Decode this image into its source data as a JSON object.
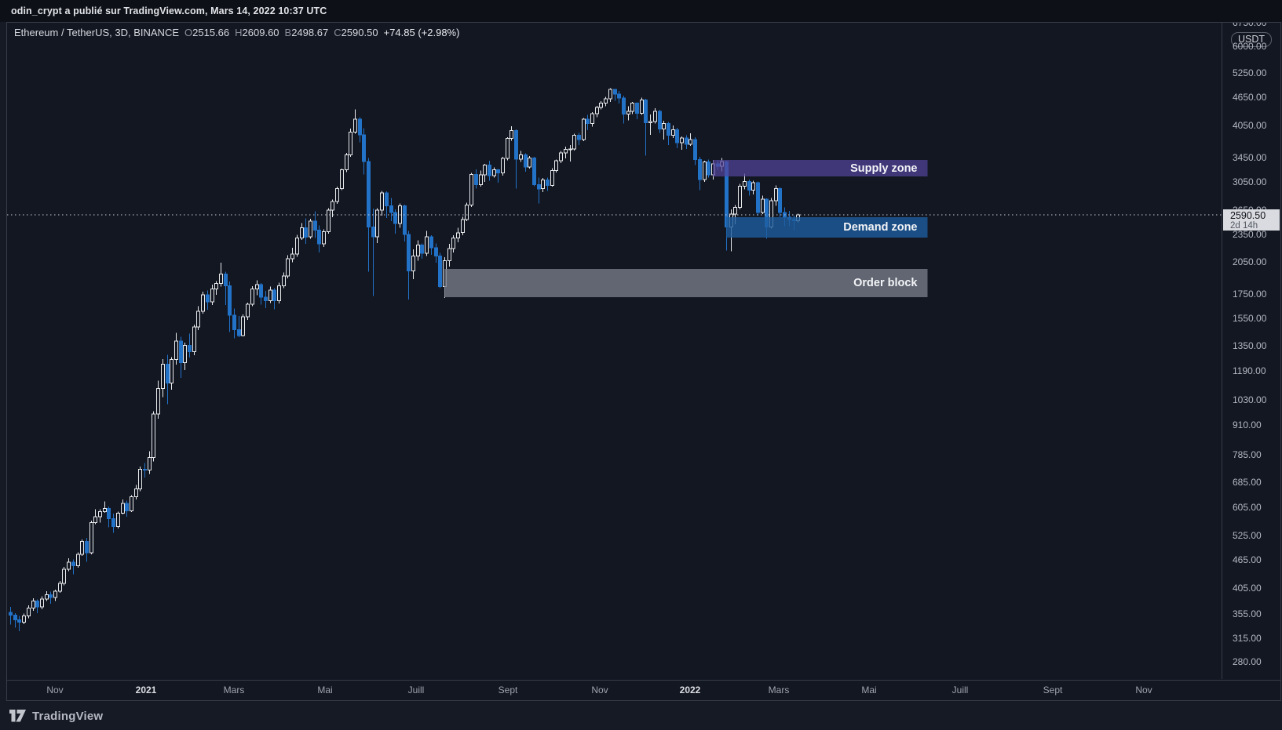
{
  "publish_bar": {
    "text": "odin_crypt a publié sur TradingView.com, Mars 14, 2022 10:37 UTC"
  },
  "legend": {
    "title": "Ethereum / TetherUS, 3D, BINANCE",
    "ohlc": [
      {
        "k": "O",
        "v": "2515.66"
      },
      {
        "k": "H",
        "v": "2609.60"
      },
      {
        "k": "B",
        "v": "2498.67"
      },
      {
        "k": "C",
        "v": "2590.50"
      }
    ],
    "change": "+74.85 (+2.98%)"
  },
  "axis": {
    "currency": "USDT",
    "last_price": "2590.50",
    "countdown": "2d 14h",
    "price_ticks": [
      6750,
      6000,
      5250,
      4650,
      4050,
      3450,
      3050,
      2650,
      2350,
      2050,
      1750,
      1550,
      1350,
      1190,
      1030,
      910,
      785,
      685,
      605,
      525,
      465,
      405,
      355,
      315,
      280
    ],
    "time_ticks": [
      {
        "label": "Nov",
        "index": 10
      },
      {
        "label": "2021",
        "index": 30.3,
        "major": true
      },
      {
        "label": "Mars",
        "index": 50
      },
      {
        "label": "Mai",
        "index": 70.3
      },
      {
        "label": "Juill",
        "index": 90.7
      },
      {
        "label": "Sept",
        "index": 111.3
      },
      {
        "label": "Nov",
        "index": 131.7
      },
      {
        "label": "2022",
        "index": 152,
        "major": true
      },
      {
        "label": "Mars",
        "index": 171.7
      },
      {
        "label": "Mai",
        "index": 192
      },
      {
        "label": "Juill",
        "index": 212.3
      },
      {
        "label": "Sept",
        "index": 233
      },
      {
        "label": "Nov",
        "index": 253.3
      }
    ]
  },
  "footer": {
    "brand": "TradingView"
  },
  "chart_data": {
    "type": "candlestick",
    "title": "Ethereum / TetherUS, 3D, BINANCE",
    "interval": "3D",
    "price_scale": "log",
    "grid": false,
    "current_price": 2590.5,
    "ylim": [
      270,
      7000
    ],
    "colors": {
      "bg": "#131722",
      "up": "#e8eaec",
      "down": "#2272c8",
      "dotted_line": "#c9ccd4"
    },
    "zones": [
      {
        "name": "Supply zone",
        "price_top": 3405,
        "price_bottom": 3140,
        "start_index": 157,
        "end_index": 205,
        "color": "#52449b",
        "opacity": 0.72
      },
      {
        "name": "Demand zone",
        "price_top": 2563,
        "price_bottom": 2315,
        "start_index": 160,
        "end_index": 205,
        "color": "#1e5c9e",
        "opacity": 0.8
      },
      {
        "name": "Order block",
        "price_top": 1980,
        "price_bottom": 1720,
        "start_index": 97,
        "end_index": 205,
        "color": "#757a87",
        "opacity": 0.8
      }
    ],
    "candles": [
      [
        358,
        368,
        337,
        353
      ],
      [
        353,
        357,
        332,
        345
      ],
      [
        345,
        352,
        326,
        341
      ],
      [
        341,
        356,
        338,
        352
      ],
      [
        352,
        371,
        348,
        366
      ],
      [
        366,
        384,
        361,
        379
      ],
      [
        379,
        382,
        357,
        368
      ],
      [
        368,
        388,
        364,
        383
      ],
      [
        383,
        398,
        379,
        391
      ],
      [
        391,
        397,
        374,
        386
      ],
      [
        386,
        401,
        379,
        398
      ],
      [
        398,
        419,
        395,
        414
      ],
      [
        414,
        449,
        410,
        444
      ],
      [
        444,
        469,
        440,
        460
      ],
      [
        460,
        466,
        433,
        452
      ],
      [
        452,
        483,
        447,
        478
      ],
      [
        478,
        515,
        474,
        510
      ],
      [
        510,
        519,
        461,
        482
      ],
      [
        482,
        566,
        478,
        560
      ],
      [
        560,
        599,
        556,
        577
      ],
      [
        577,
        599,
        560,
        592
      ],
      [
        592,
        622,
        588,
        601
      ],
      [
        601,
        607,
        547,
        571
      ],
      [
        571,
        586,
        532,
        549
      ],
      [
        549,
        592,
        544,
        587
      ],
      [
        587,
        629,
        583,
        616
      ],
      [
        616,
        625,
        577,
        594
      ],
      [
        594,
        642,
        590,
        637
      ],
      [
        637,
        676,
        628,
        662
      ],
      [
        662,
        740,
        655,
        730
      ],
      [
        730,
        754,
        701,
        728
      ],
      [
        728,
        799,
        714,
        775
      ],
      [
        775,
        975,
        760,
        962
      ],
      [
        962,
        1135,
        940,
        1092
      ],
      [
        1092,
        1263,
        1045,
        1232
      ],
      [
        1232,
        1292,
        1010,
        1122
      ],
      [
        1122,
        1276,
        1086,
        1262
      ],
      [
        1262,
        1440,
        1230,
        1382
      ],
      [
        1382,
        1412,
        1150,
        1242
      ],
      [
        1242,
        1372,
        1196,
        1352
      ],
      [
        1352,
        1436,
        1275,
        1312
      ],
      [
        1312,
        1502,
        1290,
        1482
      ],
      [
        1482,
        1645,
        1460,
        1605
      ],
      [
        1605,
        1768,
        1585,
        1742
      ],
      [
        1742,
        1780,
        1615,
        1682
      ],
      [
        1682,
        1830,
        1656,
        1792
      ],
      [
        1792,
        1865,
        1740,
        1842
      ],
      [
        1842,
        2042,
        1812,
        1932
      ],
      [
        1932,
        1955,
        1655,
        1822
      ],
      [
        1822,
        1860,
        1446,
        1572
      ],
      [
        1572,
        1625,
        1402,
        1462
      ],
      [
        1462,
        1566,
        1410,
        1422
      ],
      [
        1422,
        1578,
        1415,
        1562
      ],
      [
        1562,
        1674,
        1535,
        1662
      ],
      [
        1662,
        1818,
        1645,
        1792
      ],
      [
        1792,
        1872,
        1736,
        1832
      ],
      [
        1832,
        1845,
        1658,
        1722
      ],
      [
        1722,
        1775,
        1630,
        1692
      ],
      [
        1692,
        1814,
        1670,
        1782
      ],
      [
        1782,
        1800,
        1620,
        1692
      ],
      [
        1692,
        1848,
        1668,
        1822
      ],
      [
        1822,
        1947,
        1800,
        1912
      ],
      [
        1912,
        2122,
        1890,
        2082
      ],
      [
        2082,
        2200,
        2048,
        2132
      ],
      [
        2132,
        2346,
        2105,
        2312
      ],
      [
        2312,
        2488,
        2290,
        2432
      ],
      [
        2432,
        2545,
        2245,
        2322
      ],
      [
        2322,
        2542,
        2302,
        2512
      ],
      [
        2512,
        2640,
        2310,
        2402
      ],
      [
        2402,
        2460,
        2150,
        2242
      ],
      [
        2242,
        2410,
        2210,
        2382
      ],
      [
        2382,
        2680,
        2362,
        2652
      ],
      [
        2652,
        2800,
        2560,
        2772
      ],
      [
        2772,
        2985,
        2740,
        2952
      ],
      [
        2952,
        3265,
        2930,
        3242
      ],
      [
        3242,
        3530,
        3210,
        3492
      ],
      [
        3492,
        3985,
        3460,
        3912
      ],
      [
        3912,
        4380,
        3880,
        4172
      ],
      [
        4172,
        4215,
        3720,
        3862
      ],
      [
        3862,
        3990,
        3170,
        3382
      ],
      [
        3382,
        3440,
        1952,
        2442
      ],
      [
        2442,
        2675,
        1732,
        2322
      ],
      [
        2322,
        2680,
        2252,
        2652
      ],
      [
        2652,
        2920,
        2582,
        2892
      ],
      [
        2892,
        2912,
        2552,
        2712
      ],
      [
        2712,
        2820,
        2512,
        2622
      ],
      [
        2622,
        2665,
        2362,
        2482
      ],
      [
        2482,
        2745,
        2432,
        2712
      ],
      [
        2712,
        2730,
        2272,
        2352
      ],
      [
        2352,
        2392,
        1702,
        1962
      ],
      [
        1962,
        2185,
        1882,
        2112
      ],
      [
        2112,
        2282,
        2062,
        2232
      ],
      [
        2232,
        2250,
        2082,
        2142
      ],
      [
        2142,
        2395,
        2112,
        2322
      ],
      [
        2322,
        2342,
        2126,
        2202
      ],
      [
        2202,
        2248,
        2042,
        2112
      ],
      [
        2112,
        2145,
        1800,
        1812
      ],
      [
        1812,
        2098,
        1714,
        2062
      ],
      [
        2062,
        2245,
        2002,
        2192
      ],
      [
        2192,
        2342,
        2150,
        2312
      ],
      [
        2312,
        2432,
        2262,
        2372
      ],
      [
        2372,
        2566,
        2342,
        2532
      ],
      [
        2532,
        2752,
        2512,
        2722
      ],
      [
        2722,
        3192,
        2695,
        3172
      ],
      [
        3172,
        3248,
        2952,
        3012
      ],
      [
        3012,
        3232,
        2982,
        3162
      ],
      [
        3162,
        3342,
        3052,
        3322
      ],
      [
        3322,
        3392,
        3072,
        3152
      ],
      [
        3152,
        3282,
        3122,
        3242
      ],
      [
        3242,
        3260,
        3042,
        3192
      ],
      [
        3192,
        3462,
        3152,
        3432
      ],
      [
        3432,
        3812,
        3402,
        3792
      ],
      [
        3792,
        4032,
        3752,
        3942
      ],
      [
        3942,
        3970,
        2952,
        3422
      ],
      [
        3422,
        3562,
        3372,
        3492
      ],
      [
        3492,
        3522,
        3212,
        3292
      ],
      [
        3292,
        3472,
        3262,
        3442
      ],
      [
        3442,
        3460,
        2992,
        3012
      ],
      [
        3012,
        3122,
        2742,
        2952
      ],
      [
        2952,
        3112,
        2902,
        3082
      ],
      [
        3082,
        3120,
        2922,
        3002
      ],
      [
        3002,
        3272,
        2982,
        3232
      ],
      [
        3232,
        3415,
        3202,
        3392
      ],
      [
        3392,
        3562,
        3352,
        3532
      ],
      [
        3532,
        3642,
        3432,
        3592
      ],
      [
        3592,
        3672,
        3382,
        3602
      ],
      [
        3602,
        3882,
        3572,
        3852
      ],
      [
        3852,
        3902,
        3672,
        3772
      ],
      [
        3772,
        4198,
        3742,
        4172
      ],
      [
        4172,
        4262,
        3952,
        4082
      ],
      [
        4082,
        4322,
        4022,
        4292
      ],
      [
        4292,
        4462,
        4212,
        4422
      ],
      [
        4422,
        4562,
        4382,
        4522
      ],
      [
        4522,
        4668,
        4452,
        4622
      ],
      [
        4622,
        4868,
        4552,
        4842
      ],
      [
        4842,
        4852,
        4572,
        4732
      ],
      [
        4732,
        4802,
        4512,
        4642
      ],
      [
        4642,
        4692,
        4082,
        4282
      ],
      [
        4282,
        4452,
        4152,
        4342
      ],
      [
        4342,
        4552,
        4282,
        4522
      ],
      [
        4522,
        4542,
        4172,
        4302
      ],
      [
        4302,
        4645,
        4262,
        4592
      ],
      [
        4592,
        4622,
        3482,
        4102
      ],
      [
        4102,
        4272,
        3862,
        4122
      ],
      [
        4122,
        4412,
        4082,
        4342
      ],
      [
        4342,
        4372,
        3902,
        3972
      ],
      [
        3972,
        4142,
        3772,
        4082
      ],
      [
        4082,
        4115,
        3672,
        3852
      ],
      [
        3852,
        4042,
        3802,
        3962
      ],
      [
        3962,
        4002,
        3612,
        3712
      ],
      [
        3712,
        3832,
        3582,
        3802
      ],
      [
        3802,
        3852,
        3602,
        3682
      ],
      [
        3682,
        3892,
        3652,
        3772
      ],
      [
        3772,
        3812,
        3322,
        3412
      ],
      [
        3412,
        3462,
        2932,
        3092
      ],
      [
        3092,
        3392,
        3052,
        3372
      ],
      [
        3372,
        3412,
        3122,
        3162
      ],
      [
        3162,
        3408,
        3092,
        3342
      ],
      [
        3342,
        3398,
        3242,
        3302
      ],
      [
        3302,
        3442,
        3222,
        3382
      ],
      [
        3382,
        3395,
        2172,
        2442
      ],
      [
        2442,
        2662,
        2162,
        2602
      ],
      [
        2602,
        2722,
        2472,
        2692
      ],
      [
        2692,
        3022,
        2662,
        2992
      ],
      [
        2992,
        3182,
        2942,
        3062
      ],
      [
        3062,
        3092,
        2852,
        2932
      ],
      [
        2932,
        3072,
        2872,
        3042
      ],
      [
        3042,
        3058,
        2582,
        2622
      ],
      [
        2622,
        2852,
        2602,
        2802
      ],
      [
        2802,
        2812,
        2302,
        2442
      ],
      [
        2442,
        2822,
        2422,
        2782
      ],
      [
        2782,
        3002,
        2712,
        2952
      ],
      [
        2952,
        2972,
        2562,
        2622
      ],
      [
        2622,
        2692,
        2452,
        2562
      ],
      [
        2562,
        2642,
        2452,
        2532
      ],
      [
        2532,
        2582,
        2402,
        2516
      ],
      [
        2515.66,
        2609.6,
        2498.67,
        2590.5
      ]
    ]
  }
}
